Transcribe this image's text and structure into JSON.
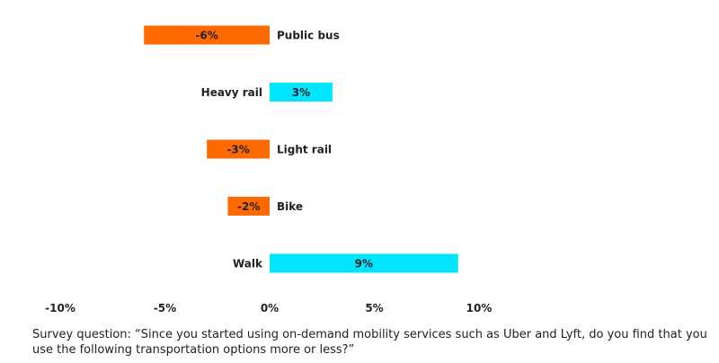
{
  "chart_data": {
    "type": "bar",
    "orientation": "horizontal",
    "categories": [
      "Public bus",
      "Heavy rail",
      "Light rail",
      "Bike",
      "Walk"
    ],
    "values": [
      -6,
      3,
      -3,
      -2,
      9
    ],
    "value_labels": [
      "-6%",
      "3%",
      "-3%",
      "-2%",
      "9%"
    ],
    "xlim": [
      -10,
      10
    ],
    "xticks": [
      -10,
      -5,
      0,
      5,
      10
    ],
    "xtick_labels": [
      "-10%",
      "-5%",
      "0%",
      "5%",
      "10%"
    ],
    "grid": false,
    "colors": {
      "positive": "#00e5ff",
      "negative": "#ff6a00"
    }
  },
  "footnote": "Survey question: “Since you started using on-demand mobility services such as Uber and Lyft, do you find that you use the following transportation options more or less?”"
}
